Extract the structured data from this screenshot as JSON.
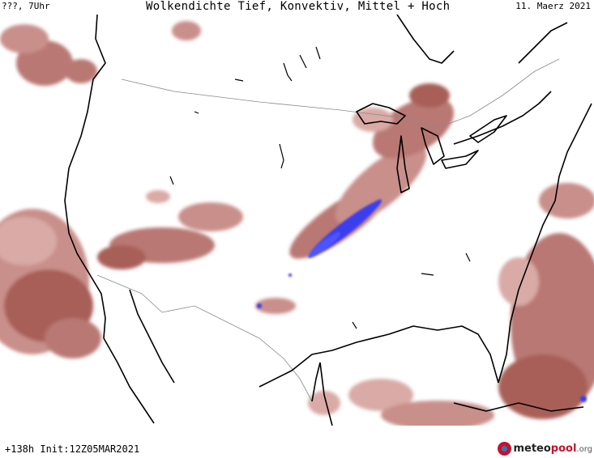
{
  "header": {
    "left": "???, 7Uhr",
    "title": "Wolkendichte  Tief, Konvektiv, Mittel + Hoch",
    "date": "11. Maerz 2021"
  },
  "footer": {
    "run_info": "+138h Init:12Z05MAR2021",
    "logo_main": "meteo",
    "logo_accent": "pool",
    "logo_suffix": ".org"
  },
  "legend_colors": {
    "light_cloud": "#d9aaa6",
    "medium_cloud": "#b97873",
    "dense_cloud": "#8c3a37",
    "convective": "#3a3cf0",
    "coastline": "#000000",
    "borders": "#8a8a8a"
  }
}
